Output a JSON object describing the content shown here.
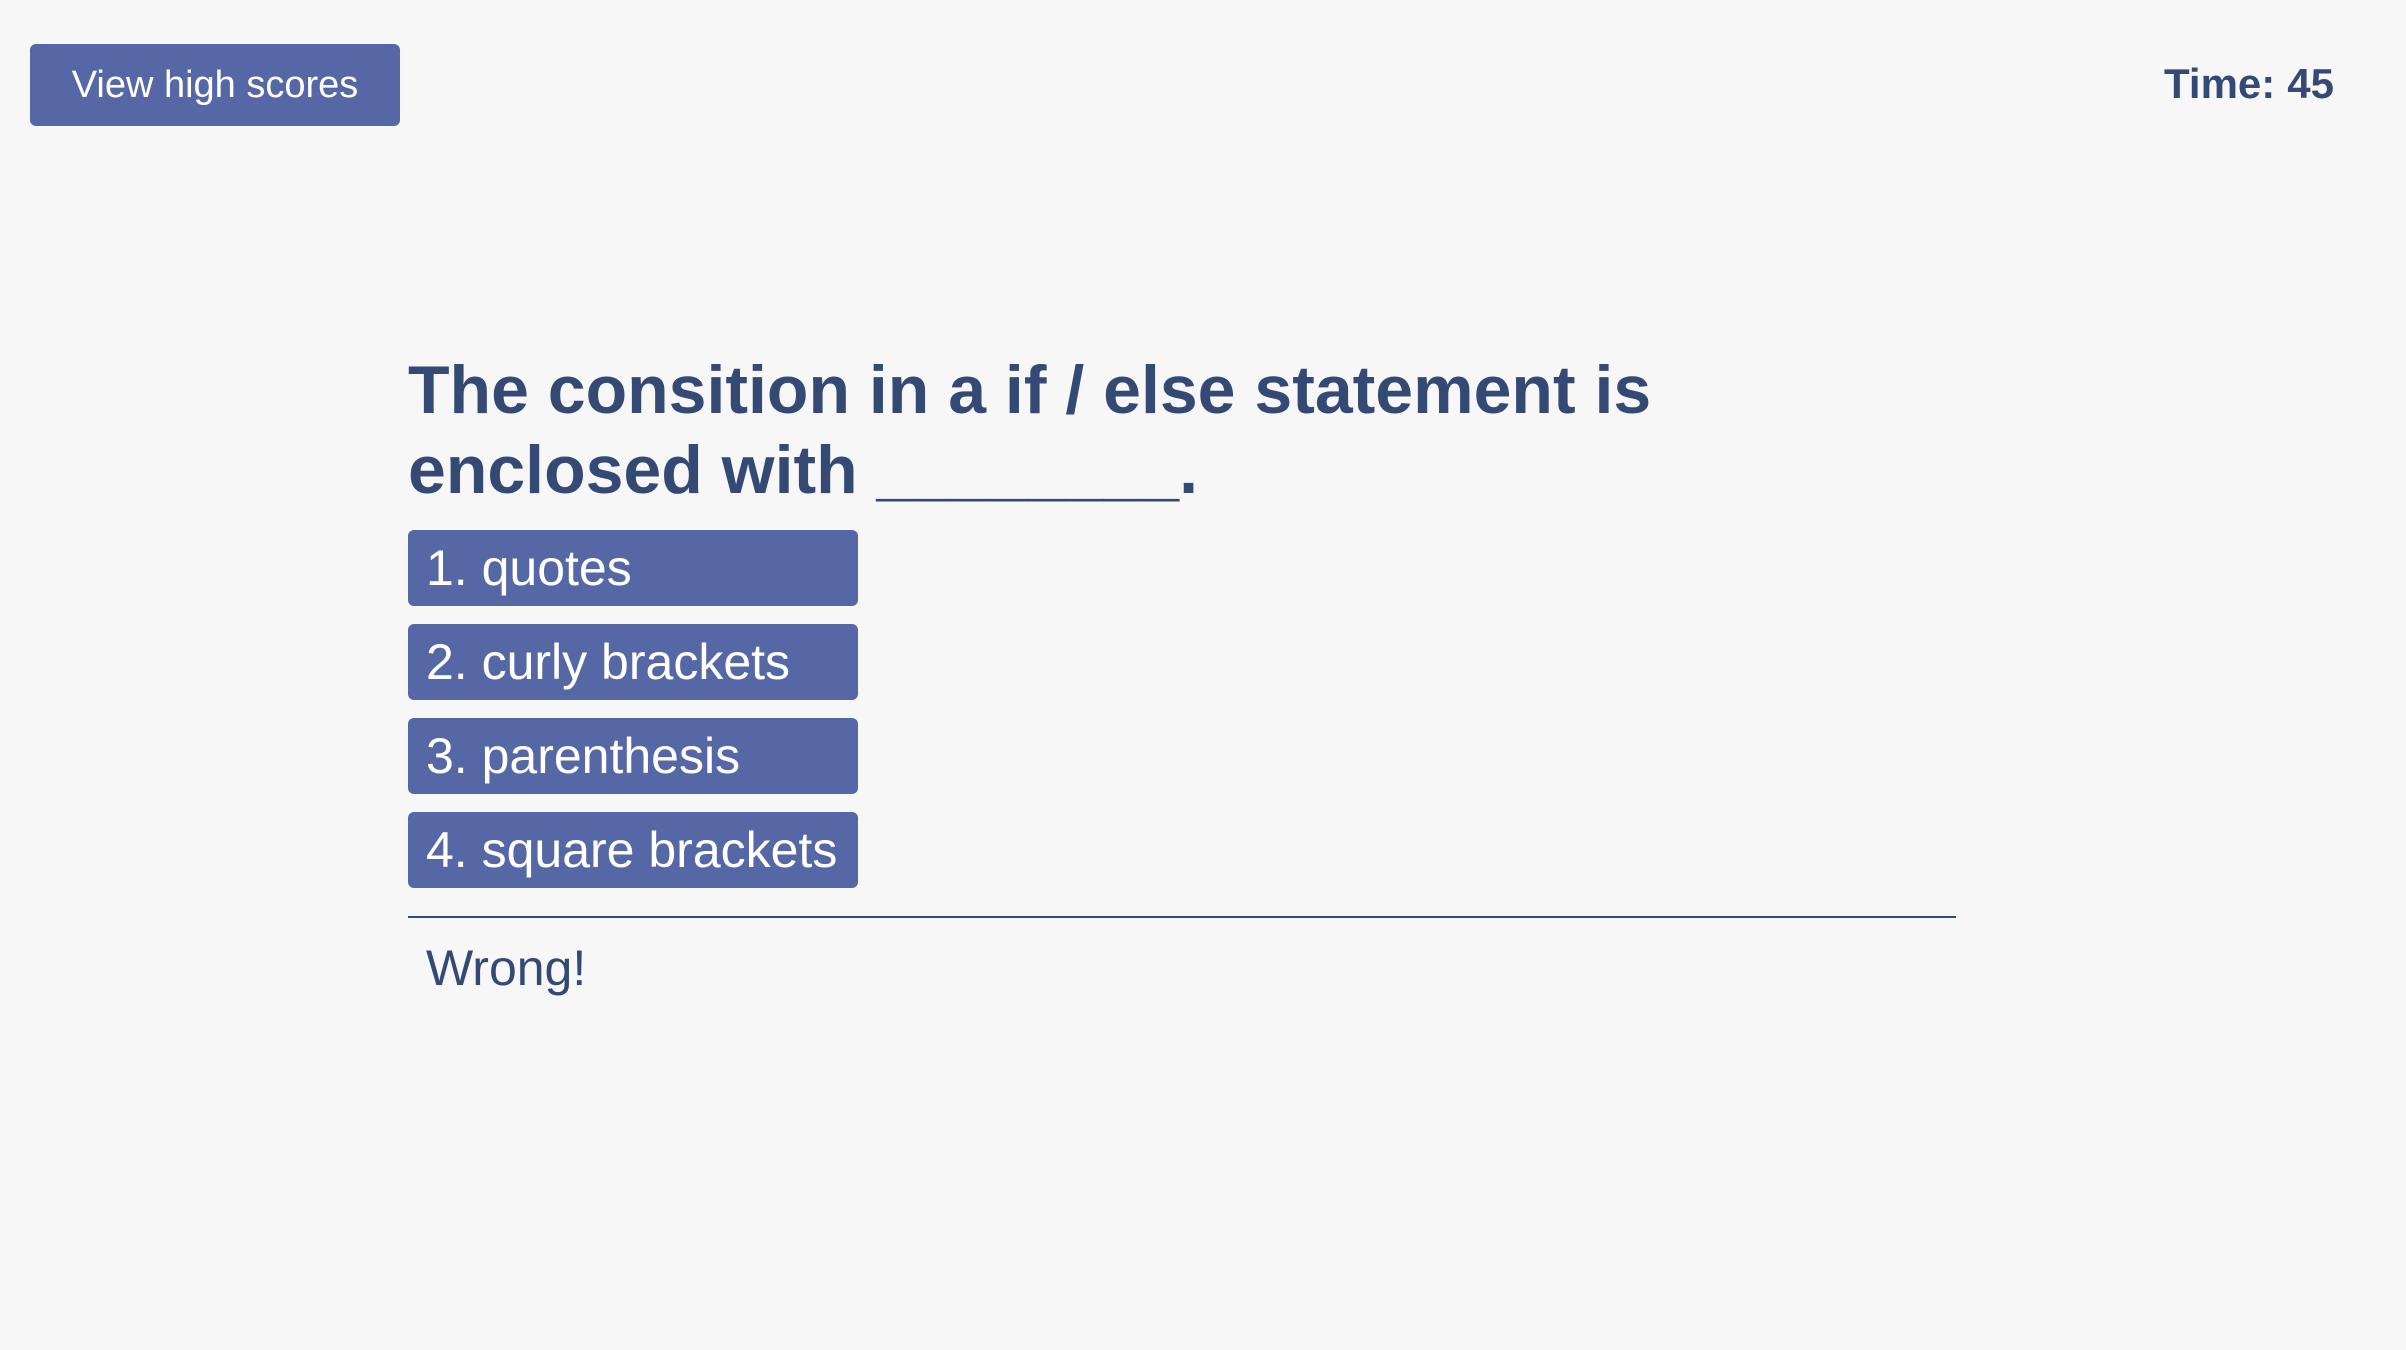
{
  "header": {
    "high_scores_label": "View high scores",
    "timer_label": "Time:",
    "timer_value": "45"
  },
  "quiz": {
    "question": "The consition in a if / else statement is enclosed with ________.",
    "choices": [
      {
        "label": "1. quotes"
      },
      {
        "label": "2. curly brackets"
      },
      {
        "label": "3. parenthesis"
      },
      {
        "label": "4. square brackets"
      }
    ],
    "feedback": "Wrong!"
  },
  "colors": {
    "background": "#f7f7f7",
    "button": "#5667a5",
    "text": "#344a74",
    "button_text": "#ffffff"
  }
}
